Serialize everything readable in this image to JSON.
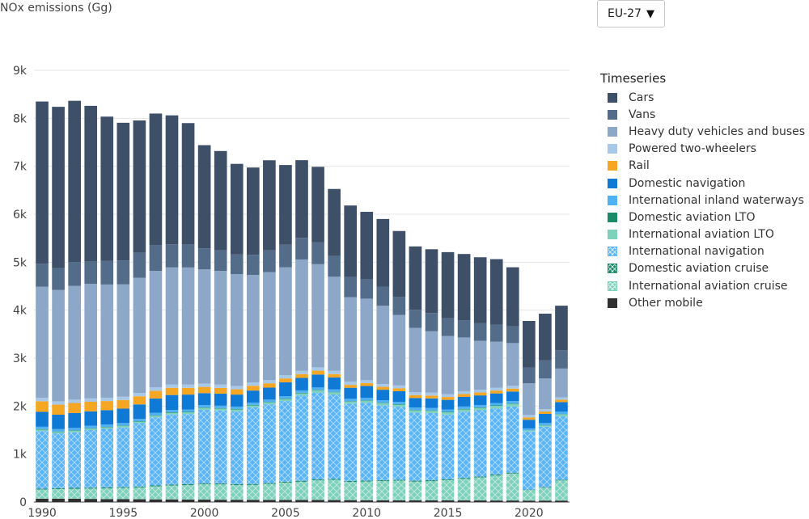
{
  "chart_data": {
    "type": "bar",
    "stacked": true,
    "ylabel": "NOx emissions (Gg)",
    "legend_title": "Timeseries",
    "legend_position": "right",
    "ylim": [
      0,
      9000
    ],
    "yticks": [
      0,
      1000,
      2000,
      3000,
      4000,
      5000,
      6000,
      7000,
      8000,
      9000
    ],
    "ytick_labels": [
      "0",
      "1k",
      "2k",
      "3k",
      "4k",
      "5k",
      "6k",
      "7k",
      "8k",
      "9k"
    ],
    "xticks": [
      1990,
      1995,
      2000,
      2005,
      2010,
      2015,
      2020
    ],
    "x": [
      1990,
      1991,
      1992,
      1993,
      1994,
      1995,
      1996,
      1997,
      1998,
      1999,
      2000,
      2001,
      2002,
      2003,
      2004,
      2005,
      2006,
      2007,
      2008,
      2009,
      2010,
      2011,
      2012,
      2013,
      2014,
      2015,
      2016,
      2017,
      2018,
      2019,
      2020,
      2021,
      2022
    ],
    "grid": true,
    "series": [
      {
        "name": "Other mobile",
        "color": "#2f2f2f",
        "pattern": "none",
        "values": [
          70,
          70,
          70,
          65,
          60,
          60,
          58,
          55,
          55,
          52,
          50,
          48,
          47,
          46,
          45,
          44,
          43,
          42,
          41,
          40,
          38,
          37,
          36,
          35,
          35,
          34,
          33,
          33,
          32,
          32,
          30,
          30,
          30
        ]
      },
      {
        "name": "International aviation cruise",
        "color": "#7fd1bc",
        "pattern": "cross",
        "values": [
          190,
          200,
          205,
          215,
          225,
          235,
          245,
          270,
          290,
          300,
          320,
          320,
          305,
          310,
          330,
          360,
          380,
          410,
          420,
          380,
          390,
          400,
          410,
          390,
          400,
          420,
          450,
          480,
          520,
          560,
          220,
          270,
          420
        ]
      },
      {
        "name": "Domestic aviation cruise",
        "color": "#1b8a6b",
        "pattern": "cross",
        "values": [
          20,
          20,
          20,
          20,
          20,
          20,
          20,
          20,
          20,
          20,
          20,
          20,
          20,
          20,
          20,
          20,
          20,
          20,
          20,
          20,
          20,
          20,
          20,
          20,
          20,
          20,
          20,
          20,
          20,
          20,
          10,
          12,
          15
        ]
      },
      {
        "name": "International navigation",
        "color": "#5ab4f5",
        "pattern": "cross",
        "values": [
          1200,
          1140,
          1160,
          1200,
          1220,
          1240,
          1320,
          1420,
          1460,
          1460,
          1530,
          1520,
          1520,
          1600,
          1640,
          1680,
          1780,
          1810,
          1760,
          1610,
          1620,
          1560,
          1520,
          1420,
          1400,
          1350,
          1380,
          1380,
          1380,
          1380,
          1210,
          1260,
          1320
        ]
      },
      {
        "name": "International aviation LTO",
        "color": "#7fd1bc",
        "pattern": "none",
        "values": [
          30,
          30,
          30,
          30,
          30,
          32,
          32,
          34,
          36,
          38,
          40,
          40,
          38,
          38,
          40,
          42,
          44,
          46,
          46,
          42,
          42,
          44,
          44,
          44,
          45,
          46,
          48,
          50,
          52,
          52,
          20,
          24,
          40
        ]
      },
      {
        "name": "Domestic aviation LTO",
        "color": "#1b8a6b",
        "pattern": "none",
        "values": [
          10,
          10,
          10,
          10,
          10,
          10,
          10,
          10,
          10,
          10,
          10,
          10,
          10,
          10,
          10,
          10,
          10,
          10,
          10,
          10,
          10,
          10,
          10,
          10,
          10,
          10,
          10,
          10,
          10,
          10,
          5,
          6,
          8
        ]
      },
      {
        "name": "International inland waterways",
        "color": "#4fb0f2",
        "pattern": "none",
        "values": [
          50,
          50,
          50,
          50,
          50,
          50,
          50,
          50,
          50,
          50,
          50,
          50,
          50,
          50,
          50,
          50,
          50,
          50,
          50,
          50,
          50,
          50,
          50,
          50,
          50,
          50,
          50,
          50,
          50,
          50,
          40,
          45,
          50
        ]
      },
      {
        "name": "Domestic navigation",
        "color": "#0f7ad6",
        "pattern": "none",
        "values": [
          310,
          300,
          310,
          300,
          300,
          300,
          300,
          300,
          310,
          310,
          250,
          250,
          250,
          250,
          250,
          290,
          260,
          270,
          250,
          230,
          250,
          220,
          220,
          200,
          200,
          200,
          200,
          200,
          200,
          200,
          180,
          190,
          200
        ]
      },
      {
        "name": "Rail",
        "color": "#f5a623",
        "pattern": "none",
        "values": [
          220,
          210,
          210,
          200,
          190,
          180,
          170,
          160,
          150,
          140,
          130,
          120,
          110,
          100,
          90,
          80,
          80,
          80,
          70,
          60,
          60,
          60,
          60,
          60,
          60,
          60,
          60,
          60,
          60,
          60,
          50,
          50,
          50
        ]
      },
      {
        "name": "Powered two-wheelers",
        "color": "#a8c8e8",
        "pattern": "none",
        "values": [
          70,
          70,
          70,
          70,
          70,
          70,
          70,
          70,
          70,
          70,
          70,
          70,
          70,
          70,
          70,
          70,
          70,
          70,
          70,
          70,
          60,
          60,
          60,
          60,
          60,
          60,
          60,
          60,
          60,
          60,
          50,
          50,
          50
        ]
      },
      {
        "name": "Heavy duty vehicles and buses",
        "color": "#8ca7c7",
        "pattern": "none",
        "values": [
          2320,
          2320,
          2370,
          2390,
          2360,
          2340,
          2400,
          2430,
          2440,
          2440,
          2380,
          2370,
          2330,
          2240,
          2250,
          2250,
          2320,
          2150,
          1960,
          1760,
          1700,
          1630,
          1470,
          1340,
          1280,
          1210,
          1120,
          1020,
          960,
          890,
          660,
          640,
          600
        ]
      },
      {
        "name": "Vans",
        "color": "#536c8a",
        "pattern": "none",
        "values": [
          480,
          460,
          500,
          460,
          490,
          500,
          520,
          540,
          480,
          480,
          440,
          430,
          410,
          420,
          450,
          470,
          450,
          460,
          430,
          420,
          400,
          400,
          380,
          380,
          380,
          370,
          360,
          370,
          350,
          350,
          330,
          380,
          380
        ]
      },
      {
        "name": "Cars",
        "color": "#3e5068",
        "pattern": "none",
        "values": [
          3380,
          3360,
          3360,
          3250,
          3010,
          2870,
          2760,
          2740,
          2690,
          2530,
          2150,
          2070,
          1890,
          1820,
          1880,
          1660,
          1620,
          1570,
          1400,
          1490,
          1410,
          1410,
          1370,
          1320,
          1330,
          1380,
          1380,
          1370,
          1370,
          1230,
          970,
          970,
          930
        ]
      }
    ]
  },
  "ui": {
    "region_select": {
      "value": "EU-27",
      "arrow": "▼"
    }
  }
}
